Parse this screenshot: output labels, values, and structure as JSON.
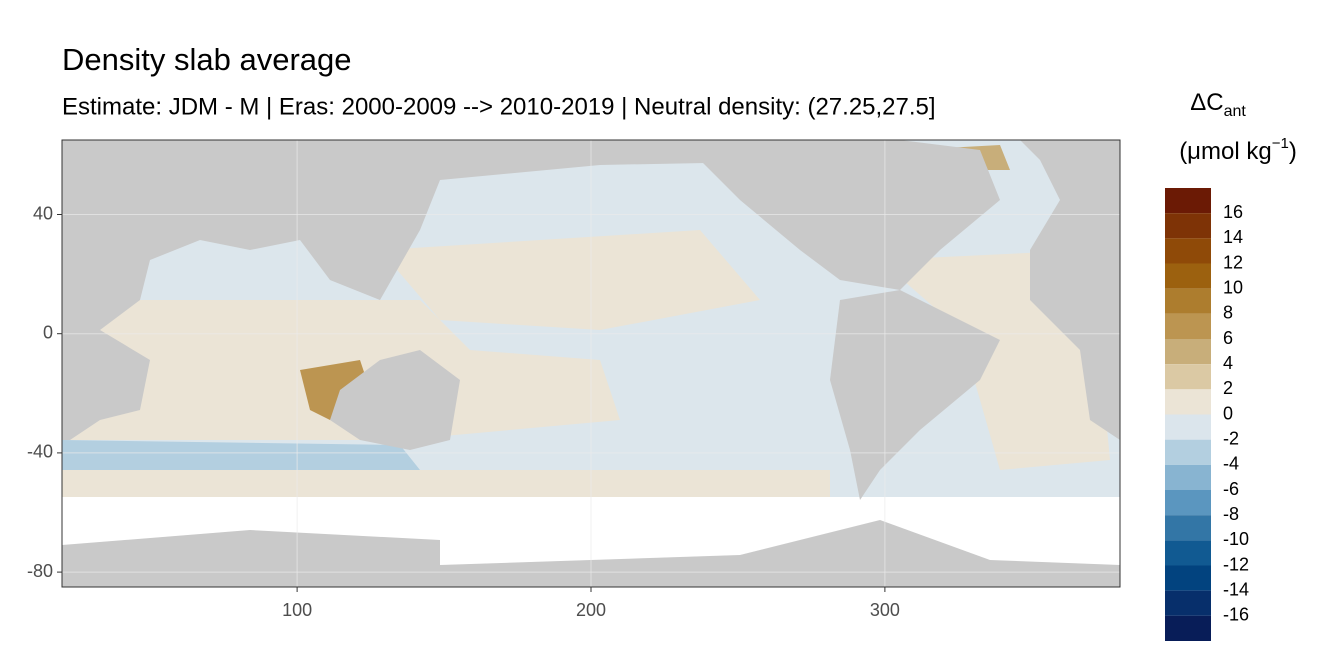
{
  "chart_data": {
    "type": "map",
    "title": "Density slab average",
    "subtitle": "Estimate: JDM - M | Eras: 2000-2009 --> 2010-2019 | Neutral density: (27.25,27.5]",
    "xlim": [
      20,
      380
    ],
    "ylim": [
      -85,
      65
    ],
    "xticks": [
      100,
      200,
      300
    ],
    "yticks": [
      40,
      0,
      -40,
      -80
    ],
    "grid": true,
    "legend": {
      "title": "ΔC",
      "title_sub": "ant",
      "unit": "(μmol kg",
      "unit_sup": "−1",
      "unit_end": ")",
      "breaks": [
        18,
        16,
        14,
        12,
        10,
        8,
        6,
        4,
        2,
        0,
        -2,
        -4,
        -6,
        -8,
        -10,
        -12,
        -14,
        -16,
        -18
      ],
      "labels": [
        16,
        14,
        12,
        10,
        8,
        6,
        4,
        2,
        0,
        -2,
        -4,
        -6,
        -8,
        -10,
        -12,
        -14,
        -16
      ],
      "colors": [
        "#6b1a05",
        "#7e3306",
        "#8f4a08",
        "#9c610f",
        "#ad7d2e",
        "#bc9551",
        "#c8ae7a",
        "#dbc9a4",
        "#ebe4d6",
        "#dbe5ec",
        "#b3cfe0",
        "#88b4d1",
        "#5b96bf",
        "#3376a6",
        "#115a92",
        "#02437f",
        "#072f6b",
        "#081d58"
      ]
    }
  }
}
